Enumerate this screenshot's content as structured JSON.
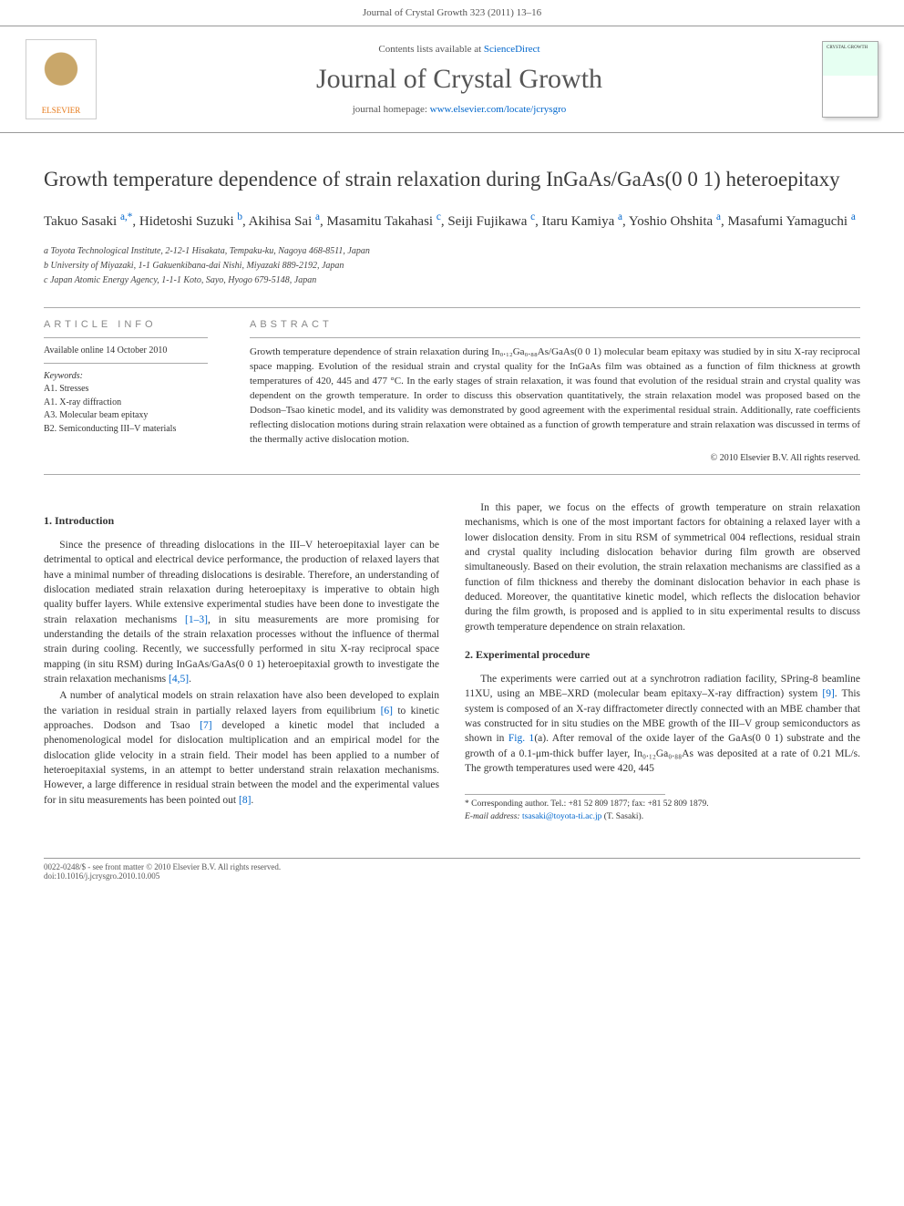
{
  "header": {
    "citation": "Journal of Crystal Growth 323 (2011) 13–16"
  },
  "masthead": {
    "publisher": "ELSEVIER",
    "contents_prefix": "Contents lists available at ",
    "contents_link": "ScienceDirect",
    "journal_title": "Journal of Crystal Growth",
    "homepage_prefix": "journal homepage: ",
    "homepage_url": "www.elsevier.com/locate/jcrysgro",
    "cover_label": "CRYSTAL GROWTH"
  },
  "article": {
    "title": "Growth temperature dependence of strain relaxation during InGaAs/GaAs(0 0 1) heteroepitaxy",
    "authors_html": "Takuo Sasaki <span class='sup author-link'>a,</span><span class='sup corr-mark'>*</span>, Hidetoshi Suzuki <span class='sup author-link'>b</span>, Akihisa Sai <span class='sup author-link'>a</span>, Masamitu Takahasi <span class='sup author-link'>c</span>, Seiji Fujikawa <span class='sup author-link'>c</span>, Itaru Kamiya <span class='sup author-link'>a</span>, Yoshio Ohshita <span class='sup author-link'>a</span>, Masafumi Yamaguchi <span class='sup author-link'>a</span>",
    "affiliations": [
      "a Toyota Technological Institute, 2-12-1 Hisakata, Tempaku-ku, Nagoya 468-8511, Japan",
      "b University of Miyazaki, 1-1 Gakuenkibana-dai Nishi, Miyazaki 889-2192, Japan",
      "c Japan Atomic Energy Agency, 1-1-1 Koto, Sayo, Hyogo 679-5148, Japan"
    ]
  },
  "info": {
    "heading": "ARTICLE INFO",
    "online_date": "Available online 14 October 2010",
    "keywords_label": "Keywords:",
    "keywords": [
      "A1. Stresses",
      "A1. X-ray diffraction",
      "A3. Molecular beam epitaxy",
      "B2. Semiconducting III–V materials"
    ]
  },
  "abstract": {
    "heading": "ABSTRACT",
    "text": "Growth temperature dependence of strain relaxation during In₀.₁₂Ga₀.₈₈As/GaAs(0 0 1) molecular beam epitaxy was studied by in situ X-ray reciprocal space mapping. Evolution of the residual strain and crystal quality for the InGaAs film was obtained as a function of film thickness at growth temperatures of 420, 445 and 477 °C. In the early stages of strain relaxation, it was found that evolution of the residual strain and crystal quality was dependent on the growth temperature. In order to discuss this observation quantitatively, the strain relaxation model was proposed based on the Dodson–Tsao kinetic model, and its validity was demonstrated by good agreement with the experimental residual strain. Additionally, rate coefficients reflecting dislocation motions during strain relaxation were obtained as a function of growth temperature and strain relaxation was discussed in terms of the thermally active dislocation motion.",
    "copyright": "© 2010 Elsevier B.V. All rights reserved."
  },
  "body": {
    "sec1_heading": "1.  Introduction",
    "sec1_p1": "Since the presence of threading dislocations in the III–V heteroepitaxial layer can be detrimental to optical and electrical device performance, the production of relaxed layers that have a minimal number of threading dislocations is desirable. Therefore, an understanding of dislocation mediated strain relaxation during heteroepitaxy is imperative to obtain high quality buffer layers. While extensive experimental studies have been done to investigate the strain relaxation mechanisms ",
    "sec1_p1_ref1": "[1–3]",
    "sec1_p1b": ", in situ measurements are more promising for understanding the details of the strain relaxation processes without the influence of thermal strain during cooling. Recently, we successfully performed in situ X-ray reciprocal space mapping (in situ RSM) during InGaAs/GaAs(0 0 1) heteroepitaxial growth to investigate the strain relaxation mechanisms ",
    "sec1_p1_ref2": "[4,5]",
    "sec1_p1c": ".",
    "sec1_p2a": "A number of analytical models on strain relaxation have also been developed to explain the variation in residual strain in partially relaxed layers from equilibrium ",
    "sec1_p2_ref1": "[6]",
    "sec1_p2b": " to kinetic approaches. Dodson and Tsao ",
    "sec1_p2_ref2": "[7]",
    "sec1_p2c": " developed a kinetic model that included a phenomenological model for dislocation multiplication and an empirical model for the dislocation glide velocity in a strain field. Their model has been applied to a number of heteroepitaxial systems, in an attempt to better understand strain relaxation mechanisms. However, a large difference in residual strain between the model and the experimental values for in situ measurements has been pointed out ",
    "sec1_p2_ref3": "[8]",
    "sec1_p2d": ".",
    "sec1_p3": "In this paper, we focus on the effects of growth temperature on strain relaxation mechanisms, which is one of the most important factors for obtaining a relaxed layer with a lower dislocation density. From in situ RSM of symmetrical 004 reflections, residual strain and crystal quality including dislocation behavior during film growth are observed simultaneously. Based on their evolution, the strain relaxation mechanisms are classified as a function of film thickness and thereby the dominant dislocation behavior in each phase is deduced. Moreover, the quantitative kinetic model, which reflects the dislocation behavior during the film growth, is proposed and is applied to in situ experimental results to discuss growth temperature dependence on strain relaxation.",
    "sec2_heading": "2.  Experimental procedure",
    "sec2_p1a": "The experiments were carried out at a synchrotron radiation facility, SPring-8 beamline 11XU, using an MBE–XRD (molecular beam epitaxy–X-ray diffraction) system ",
    "sec2_p1_ref1": "[9]",
    "sec2_p1b": ". This system is composed of an X-ray diffractometer directly connected with an MBE chamber that was constructed for in situ studies on the MBE growth of the III–V group semiconductors as shown in ",
    "sec2_p1_ref2": "Fig. 1",
    "sec2_p1c": "(a). After removal of the oxide layer of the GaAs(0 0 1) substrate and the growth of a 0.1-μm-thick buffer layer, In₀.₁₂Ga₀.₈₈As was deposited at a rate of 0.21 ML/s. The growth temperatures used were 420, 445"
  },
  "footnote": {
    "corr": "* Corresponding author. Tel.: +81 52 809 1877; fax: +81 52 809 1879.",
    "email_label": "E-mail address: ",
    "email": "tsasaki@toyota-ti.ac.jp",
    "email_suffix": " (T. Sasaki)."
  },
  "footer": {
    "left": "0022-0248/$ - see front matter © 2010 Elsevier B.V. All rights reserved.",
    "doi": "doi:10.1016/j.jcrysgro.2010.10.005"
  },
  "colors": {
    "link": "#0066cc",
    "text": "#333333",
    "rule": "#999999",
    "elsevier_orange": "#e67817"
  }
}
